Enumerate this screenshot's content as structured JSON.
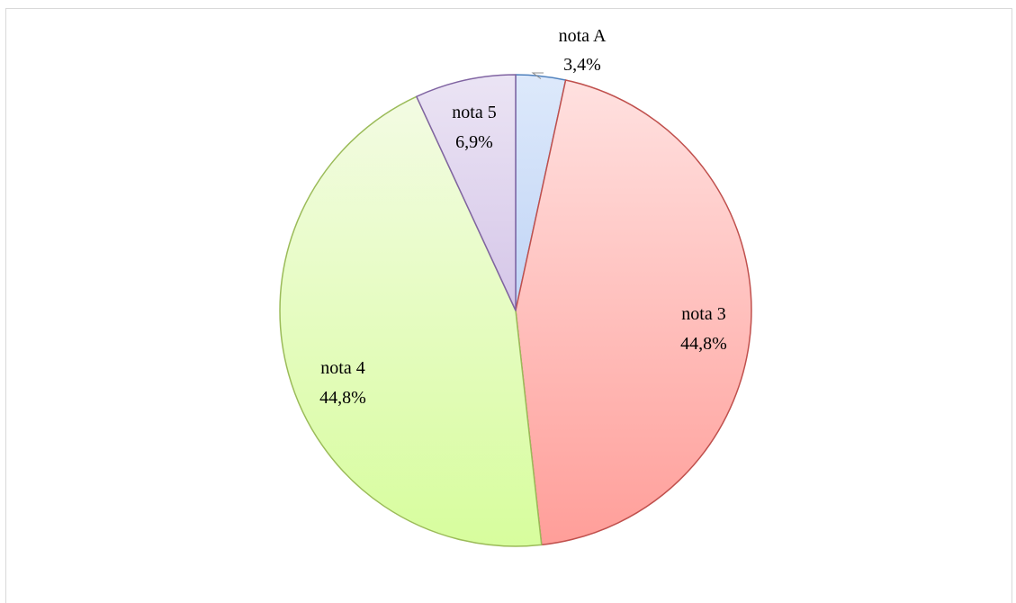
{
  "chart_data": {
    "type": "pie",
    "title": "",
    "start": "top-clockwise",
    "legend": "none",
    "slices": [
      {
        "label": "nota A",
        "value": 3.4,
        "value_label": "3,4%",
        "color": "#c6d9f8",
        "stroke": "#4f81bd",
        "gradient": [
          "#dde9fb",
          "#c0d4f5"
        ]
      },
      {
        "label": "nota 3",
        "value": 44.8,
        "value_label": "44,8%",
        "color": "#ff9e9a",
        "stroke": "#c0504d",
        "gradient": [
          "#ffe1e0",
          "#ff9e99"
        ]
      },
      {
        "label": "nota 4",
        "value": 44.8,
        "value_label": "44,8%",
        "color": "#d9ff99",
        "stroke": "#9bbb59",
        "gradient": [
          "#f3fbe3",
          "#d7fd9d"
        ]
      },
      {
        "label": "nota 5",
        "value": 6.9,
        "value_label": "6,9%",
        "color": "#d6c8e6",
        "stroke": "#8064a2",
        "gradient": [
          "#ebe4f4",
          "#d5c6e8"
        ]
      }
    ]
  }
}
